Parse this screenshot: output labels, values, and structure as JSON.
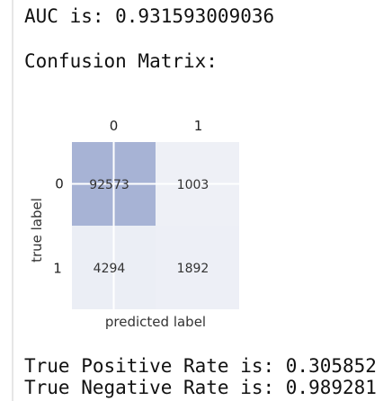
{
  "output": {
    "auc_line": "AUC is: 0.931593009036",
    "cm_title": "Confusion Matrix:",
    "tpr_line": "True Positive Rate is: 0.305852",
    "tnr_line": "True Negative Rate is: 0.989281"
  },
  "chart_data": {
    "type": "heatmap",
    "x_tick_labels": [
      "0",
      "1"
    ],
    "y_tick_labels": [
      "0",
      "1"
    ],
    "xlabel": "predicted label",
    "ylabel": "true label",
    "matrix": [
      [
        92573,
        1003
      ],
      [
        4294,
        1892
      ]
    ],
    "cell_labels": [
      [
        "92573",
        "1003"
      ],
      [
        "4294",
        "1892"
      ]
    ],
    "colors": {
      "high": "#a7b3d5",
      "low": "#eef0f6",
      "grid_line": "#ffffff",
      "text": "#333333"
    }
  }
}
